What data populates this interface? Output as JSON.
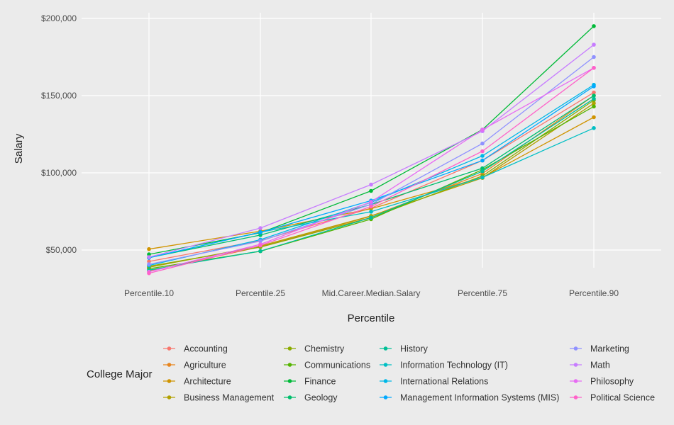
{
  "chart_data": {
    "type": "line",
    "title": "",
    "xlabel": "Percentile",
    "ylabel": "Salary",
    "categories": [
      "Percentile.10",
      "Percentile.25",
      "Mid.Career.Median.Salary",
      "Percentile.75",
      "Percentile.90"
    ],
    "ylim": [
      30000,
      205000
    ],
    "yticks": [
      50000,
      100000,
      150000,
      200000
    ],
    "ytick_labels": [
      "$50,000",
      "$100,000",
      "$150,000",
      "$200,000"
    ],
    "grid": true,
    "legend": {
      "title": "College Major",
      "position": "bottom"
    },
    "series": [
      {
        "name": "Accounting",
        "color": "#F8766D",
        "values": [
          42600,
          56100,
          77100,
          108000,
          152000
        ]
      },
      {
        "name": "Agriculture",
        "color": "#E7851E",
        "values": [
          36300,
          52100,
          71900,
          99500,
          150000
        ]
      },
      {
        "name": "Architecture",
        "color": "#D09400",
        "values": [
          50600,
          62200,
          76800,
          97000,
          136000
        ]
      },
      {
        "name": "Business Management",
        "color": "#B2A100",
        "values": [
          38800,
          52600,
          72100,
          96700,
          145000
        ]
      },
      {
        "name": "Chemistry",
        "color": "#8BAB00",
        "values": [
          39500,
          51900,
          71000,
          98000,
          147000
        ]
      },
      {
        "name": "Communications",
        "color": "#55B400",
        "values": [
          37900,
          49200,
          70000,
          102000,
          143000
        ]
      },
      {
        "name": "Finance",
        "color": "#00BA38",
        "values": [
          47200,
          61200,
          88300,
          128000,
          195000
        ]
      },
      {
        "name": "Geology",
        "color": "#00BE6C",
        "values": [
          45100,
          59700,
          79500,
          103000,
          150000
        ]
      },
      {
        "name": "History",
        "color": "#00BF96",
        "values": [
          37000,
          49300,
          71000,
          101000,
          148000
        ]
      },
      {
        "name": "Information Technology (IT)",
        "color": "#00BFC4",
        "values": [
          45000,
          61600,
          74800,
          97000,
          129000
        ]
      },
      {
        "name": "International Relations",
        "color": "#00B8E7",
        "values": [
          40000,
          56700,
          80900,
          111000,
          157000
        ]
      },
      {
        "name": "Management Information Systems (MIS)",
        "color": "#00A9FF",
        "values": [
          45000,
          61500,
          82000,
          108000,
          156000
        ]
      },
      {
        "name": "Marketing",
        "color": "#8F91FF",
        "values": [
          40800,
          55800,
          79600,
          119000,
          175000
        ]
      },
      {
        "name": "Math",
        "color": "#C77CFF",
        "values": [
          45400,
          64200,
          92400,
          127000,
          183000
        ]
      },
      {
        "name": "Philosophy",
        "color": "#E76BF3",
        "values": [
          35900,
          53700,
          81200,
          128000,
          168000
        ]
      },
      {
        "name": "Political Science",
        "color": "#FF61C9",
        "values": [
          35000,
          53000,
          78200,
          114000,
          168000
        ]
      }
    ]
  }
}
